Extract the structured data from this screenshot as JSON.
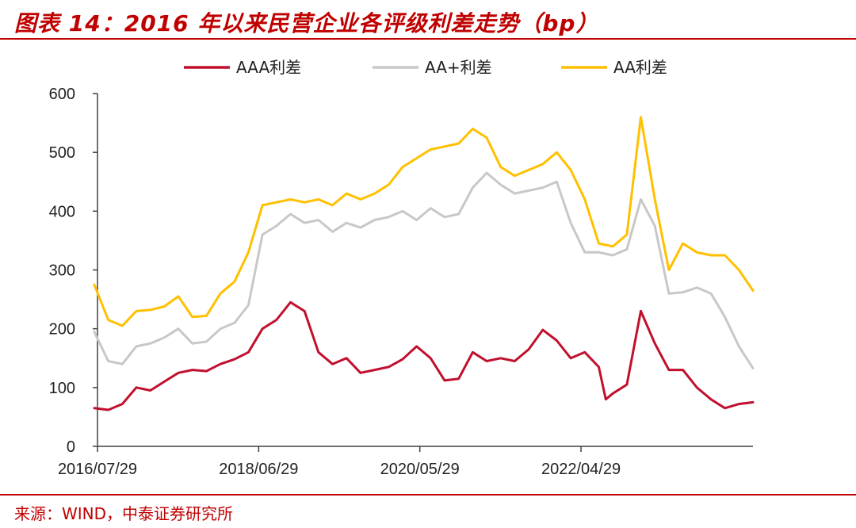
{
  "title": "图表 14：2016 年以来民营企业各评级利差走势（bp）",
  "source": "来源：WIND，中泰证券研究所",
  "colors": {
    "AAA": "#c0102e",
    "AA+": "#c8c8c8",
    "AA": "#ffc000",
    "accent": "#c00000",
    "axis": "#404040"
  },
  "chart_data": {
    "type": "line",
    "title": "图表 14：2016 年以来民营企业各评级利差走势（bp）",
    "xlabel": "",
    "ylabel": "",
    "ylim": [
      0,
      600
    ],
    "yticks": [
      "0",
      "100",
      "200",
      "300",
      "400",
      "500",
      "600"
    ],
    "xticks": [
      "2016/07/29",
      "2018/06/29",
      "2020/05/29",
      "2022/04/29"
    ],
    "x_range": [
      "2016/07/29",
      "2024/05"
    ],
    "grid": false,
    "legend": "top",
    "series": [
      {
        "name": "AAA利差",
        "color": "#c0102e",
        "points": [
          [
            "2016-07",
            65
          ],
          [
            "2016-09",
            62
          ],
          [
            "2016-11",
            72
          ],
          [
            "2017-01",
            100
          ],
          [
            "2017-03",
            95
          ],
          [
            "2017-05",
            110
          ],
          [
            "2017-07",
            125
          ],
          [
            "2017-09",
            130
          ],
          [
            "2017-11",
            128
          ],
          [
            "2018-01",
            140
          ],
          [
            "2018-03",
            148
          ],
          [
            "2018-05",
            160
          ],
          [
            "2018-07",
            200
          ],
          [
            "2018-09",
            215
          ],
          [
            "2018-11",
            245
          ],
          [
            "2019-01",
            230
          ],
          [
            "2019-03",
            160
          ],
          [
            "2019-05",
            140
          ],
          [
            "2019-07",
            150
          ],
          [
            "2019-09",
            125
          ],
          [
            "2019-11",
            130
          ],
          [
            "2020-01",
            135
          ],
          [
            "2020-03",
            148
          ],
          [
            "2020-05",
            170
          ],
          [
            "2020-07",
            150
          ],
          [
            "2020-09",
            112
          ],
          [
            "2020-11",
            115
          ],
          [
            "2021-01",
            160
          ],
          [
            "2021-03",
            145
          ],
          [
            "2021-05",
            150
          ],
          [
            "2021-07",
            145
          ],
          [
            "2021-09",
            165
          ],
          [
            "2021-11",
            198
          ],
          [
            "2022-01",
            180
          ],
          [
            "2022-03",
            150
          ],
          [
            "2022-05",
            160
          ],
          [
            "2022-07",
            135
          ],
          [
            "2022-08",
            80
          ],
          [
            "2022-09",
            90
          ],
          [
            "2022-11",
            105
          ],
          [
            "2023-01",
            230
          ],
          [
            "2023-03",
            175
          ],
          [
            "2023-05",
            130
          ],
          [
            "2023-07",
            130
          ],
          [
            "2023-09",
            100
          ],
          [
            "2023-11",
            80
          ],
          [
            "2024-01",
            65
          ],
          [
            "2024-03",
            72
          ],
          [
            "2024-05",
            75
          ]
        ]
      },
      {
        "name": "AA+利差",
        "color": "#c8c8c8",
        "points": [
          [
            "2016-07",
            195
          ],
          [
            "2016-09",
            145
          ],
          [
            "2016-11",
            140
          ],
          [
            "2017-01",
            170
          ],
          [
            "2017-03",
            175
          ],
          [
            "2017-05",
            185
          ],
          [
            "2017-07",
            200
          ],
          [
            "2017-09",
            175
          ],
          [
            "2017-11",
            178
          ],
          [
            "2018-01",
            200
          ],
          [
            "2018-03",
            210
          ],
          [
            "2018-05",
            240
          ],
          [
            "2018-07",
            360
          ],
          [
            "2018-09",
            375
          ],
          [
            "2018-11",
            395
          ],
          [
            "2019-01",
            380
          ],
          [
            "2019-03",
            385
          ],
          [
            "2019-05",
            365
          ],
          [
            "2019-07",
            380
          ],
          [
            "2019-09",
            372
          ],
          [
            "2019-11",
            385
          ],
          [
            "2020-01",
            390
          ],
          [
            "2020-03",
            400
          ],
          [
            "2020-05",
            385
          ],
          [
            "2020-07",
            405
          ],
          [
            "2020-09",
            390
          ],
          [
            "2020-11",
            395
          ],
          [
            "2021-01",
            440
          ],
          [
            "2021-03",
            465
          ],
          [
            "2021-05",
            445
          ],
          [
            "2021-07",
            430
          ],
          [
            "2021-09",
            435
          ],
          [
            "2021-11",
            440
          ],
          [
            "2022-01",
            450
          ],
          [
            "2022-03",
            380
          ],
          [
            "2022-05",
            330
          ],
          [
            "2022-07",
            330
          ],
          [
            "2022-09",
            325
          ],
          [
            "2022-11",
            335
          ],
          [
            "2023-01",
            420
          ],
          [
            "2023-03",
            375
          ],
          [
            "2023-05",
            260
          ],
          [
            "2023-07",
            262
          ],
          [
            "2023-09",
            270
          ],
          [
            "2023-11",
            260
          ],
          [
            "2024-01",
            220
          ],
          [
            "2024-03",
            170
          ],
          [
            "2024-05",
            133
          ]
        ]
      },
      {
        "name": "AA利差",
        "color": "#ffc000",
        "points": [
          [
            "2016-07",
            275
          ],
          [
            "2016-09",
            215
          ],
          [
            "2016-11",
            205
          ],
          [
            "2017-01",
            230
          ],
          [
            "2017-03",
            232
          ],
          [
            "2017-05",
            238
          ],
          [
            "2017-07",
            255
          ],
          [
            "2017-09",
            220
          ],
          [
            "2017-11",
            222
          ],
          [
            "2018-01",
            260
          ],
          [
            "2018-03",
            280
          ],
          [
            "2018-05",
            330
          ],
          [
            "2018-07",
            410
          ],
          [
            "2018-09",
            415
          ],
          [
            "2018-11",
            420
          ],
          [
            "2019-01",
            415
          ],
          [
            "2019-03",
            420
          ],
          [
            "2019-05",
            410
          ],
          [
            "2019-07",
            430
          ],
          [
            "2019-09",
            420
          ],
          [
            "2019-11",
            430
          ],
          [
            "2020-01",
            445
          ],
          [
            "2020-03",
            475
          ],
          [
            "2020-05",
            490
          ],
          [
            "2020-07",
            505
          ],
          [
            "2020-09",
            510
          ],
          [
            "2020-11",
            515
          ],
          [
            "2021-01",
            540
          ],
          [
            "2021-03",
            525
          ],
          [
            "2021-05",
            475
          ],
          [
            "2021-07",
            460
          ],
          [
            "2021-09",
            470
          ],
          [
            "2021-11",
            480
          ],
          [
            "2022-01",
            500
          ],
          [
            "2022-03",
            470
          ],
          [
            "2022-05",
            420
          ],
          [
            "2022-07",
            345
          ],
          [
            "2022-09",
            340
          ],
          [
            "2022-11",
            360
          ],
          [
            "2023-01",
            560
          ],
          [
            "2023-03",
            420
          ],
          [
            "2023-05",
            300
          ],
          [
            "2023-07",
            345
          ],
          [
            "2023-09",
            330
          ],
          [
            "2023-11",
            325
          ],
          [
            "2024-01",
            325
          ],
          [
            "2024-03",
            300
          ],
          [
            "2024-05",
            265
          ]
        ]
      }
    ]
  }
}
